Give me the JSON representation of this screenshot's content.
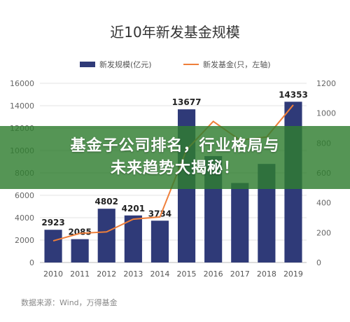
{
  "banner": {
    "line1": "基金子公司排名，行业格局与",
    "line2": "未来趋势大揭秘！"
  },
  "source": "数据来源：Wind，万得基金",
  "colors": {
    "bar": "#2f3a78",
    "line": "#ef7f3a",
    "banner": "#2f7e30"
  },
  "chart_data": {
    "type": "bar",
    "title": "近10年新发基金规模",
    "categories": [
      "2010",
      "2011",
      "2012",
      "2013",
      "2014",
      "2015",
      "2016",
      "2017",
      "2018",
      "2019"
    ],
    "series": [
      {
        "name": "新发规模(亿元)",
        "type": "bar",
        "axis": "left",
        "values": [
          2923,
          2085,
          4802,
          4201,
          3734,
          13677,
          9500,
          7100,
          8800,
          14353
        ],
        "labels": [
          "2923",
          "2085",
          "4802",
          "4201",
          "3734",
          "13677",
          "",
          "",
          "",
          "14353"
        ]
      },
      {
        "name": "新发基金(只，左轴)",
        "type": "line",
        "axis": "right",
        "values": [
          145,
          195,
          205,
          290,
          305,
          755,
          945,
          820,
          840,
          1055
        ]
      }
    ],
    "ylim_left": [
      0,
      16000
    ],
    "yticks_left": [
      "0",
      "2000",
      "4000",
      "6000",
      "8000",
      "10000",
      "12000",
      "14000",
      "16000"
    ],
    "ylim_right": [
      0,
      1200
    ],
    "yticks_right": [
      "0",
      "200",
      "400",
      "600",
      "800",
      "1000",
      "1200"
    ],
    "grid": true,
    "legend_position": "top"
  }
}
